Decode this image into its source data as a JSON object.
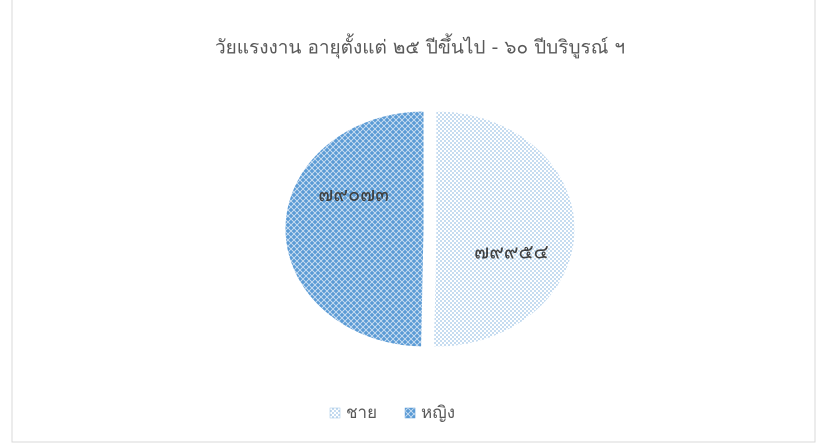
{
  "chart_data": {
    "type": "pie",
    "title": "วัยแรงงาน อายุตั้งแต่ ๒๕ ปีขึ้นไป - ๖๐ ปีบริบูรณ์ ฯ",
    "categories": [
      "ชาย",
      "หญิง"
    ],
    "values": [
      79954,
      79073
    ],
    "value_labels": [
      "๗๙๙๕๔",
      "๗๙๐๗๓"
    ],
    "colors": [
      "#9dc3e6",
      "#5b9bd5"
    ],
    "legend": "bottom"
  }
}
